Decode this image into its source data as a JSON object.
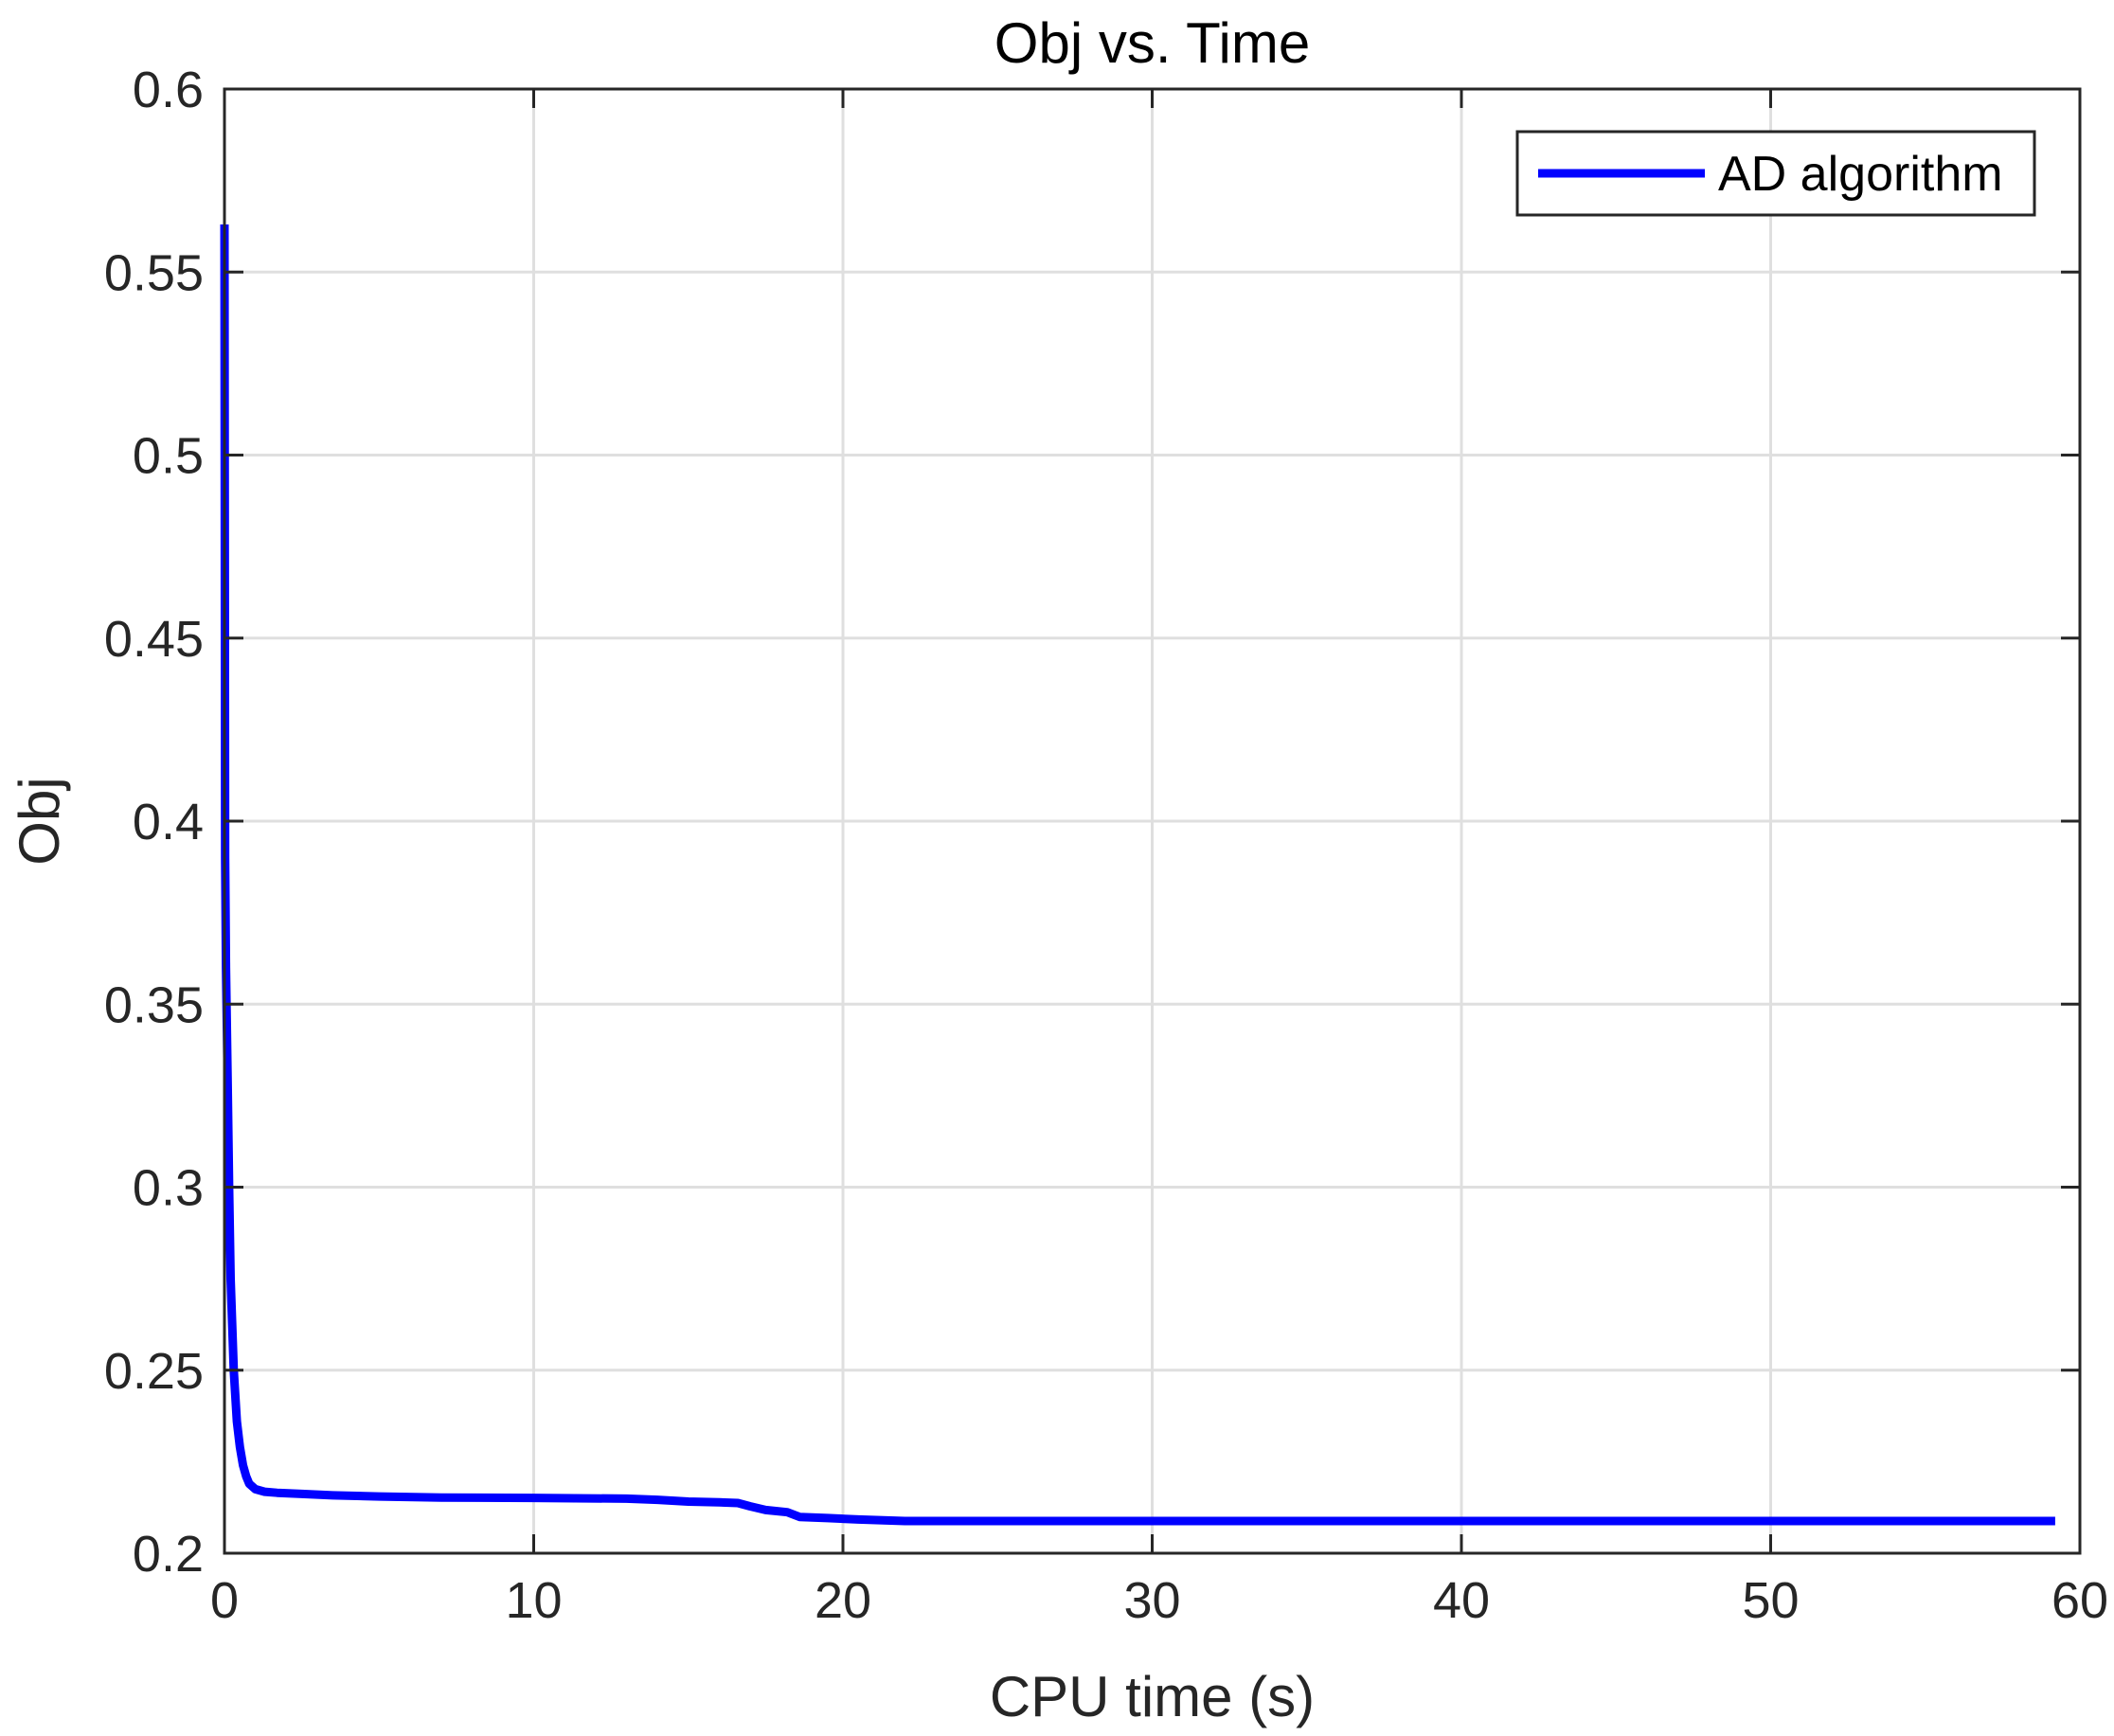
{
  "chart_data": {
    "type": "line",
    "title": "Obj vs. Time",
    "xlabel": "CPU time (s)",
    "ylabel": "Obj",
    "xlim": [
      0,
      60
    ],
    "ylim": [
      0.2,
      0.6
    ],
    "x_ticks": [
      0,
      10,
      20,
      30,
      40,
      50,
      60
    ],
    "x_tick_labels": [
      "0",
      "10",
      "20",
      "30",
      "40",
      "50",
      "60"
    ],
    "y_ticks": [
      0.2,
      0.25,
      0.3,
      0.35,
      0.4,
      0.45,
      0.5,
      0.55,
      0.6
    ],
    "y_tick_labels": [
      "0.2",
      "0.25",
      "0.3",
      "0.35",
      "0.4",
      "0.45",
      "0.5",
      "0.55",
      "0.6"
    ],
    "grid": true,
    "legend_position": "top-right",
    "series": [
      {
        "name": "AD algorithm",
        "color": "#0000ff",
        "x": [
          0.0,
          0.02,
          0.05,
          0.1,
          0.15,
          0.2,
          0.3,
          0.4,
          0.5,
          0.6,
          0.7,
          0.8,
          1.0,
          1.3,
          1.7,
          2.5,
          3.5,
          5,
          7,
          10,
          13,
          14,
          15,
          16,
          16.6,
          17,
          17.5,
          18.2,
          18.6,
          19.5,
          20.5,
          22,
          25,
          30,
          40,
          50,
          59.2
        ],
        "y": [
          0.563,
          0.39,
          0.36,
          0.33,
          0.3,
          0.275,
          0.25,
          0.236,
          0.229,
          0.224,
          0.221,
          0.219,
          0.2175,
          0.2168,
          0.2165,
          0.2162,
          0.2158,
          0.2155,
          0.2152,
          0.2151,
          0.2149,
          0.2146,
          0.2141,
          0.2139,
          0.2137,
          0.2128,
          0.2118,
          0.2112,
          0.2099,
          0.2096,
          0.2092,
          0.2088,
          0.2088,
          0.2088,
          0.2088,
          0.2088,
          0.2088
        ]
      }
    ]
  }
}
